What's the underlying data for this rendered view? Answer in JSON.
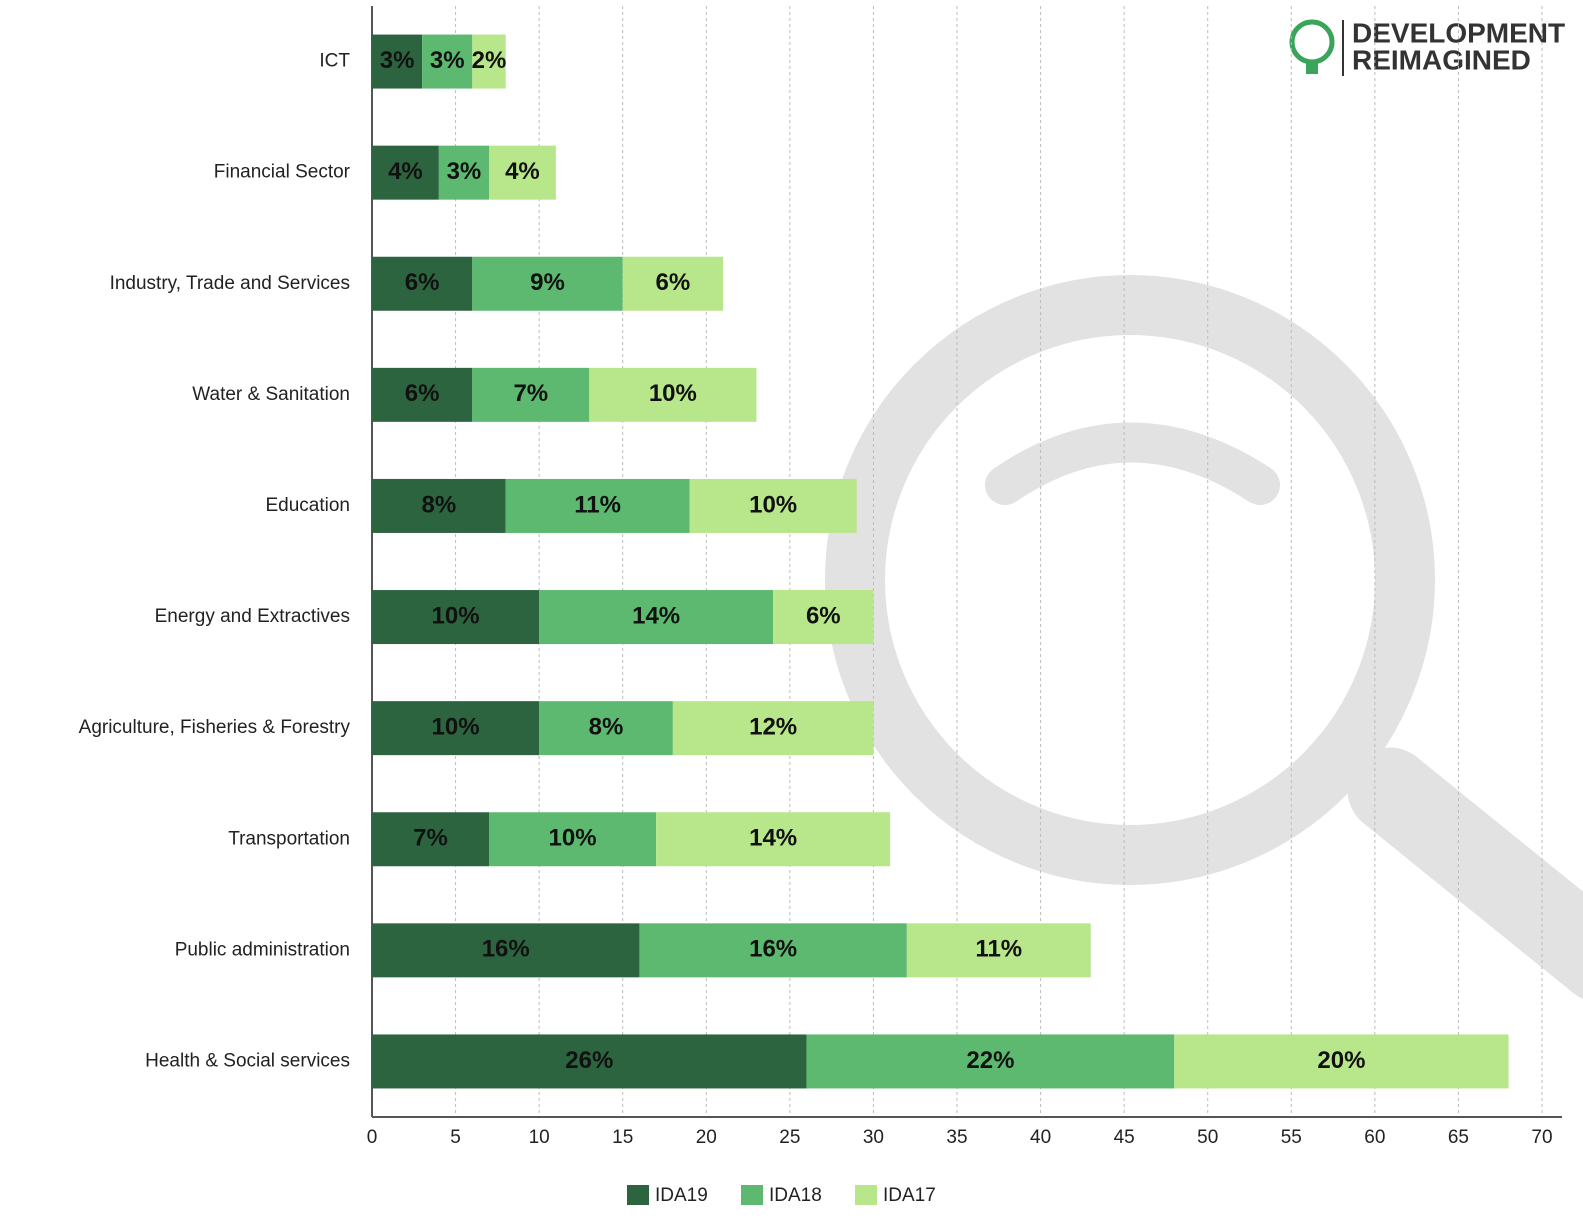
{
  "chart_data": {
    "type": "stacked-barh",
    "logo_text": [
      "DEVELOPMENT",
      "REIMAGINED"
    ],
    "categories": [
      "ICT",
      "Financial Sector",
      "Industry, Trade and Services",
      "Water & Sanitation",
      "Education",
      "Energy and Extractives",
      "Agriculture, Fisheries & Forestry",
      "Transportation",
      "Public administration",
      "Health & Social services"
    ],
    "series": [
      {
        "name": "IDA19",
        "color": "#2d6440",
        "values": [
          3,
          4,
          6,
          6,
          8,
          10,
          10,
          7,
          16,
          26
        ],
        "value_labels": [
          "3%",
          "4%",
          "6%",
          "6%",
          "8%",
          "10%",
          "10%",
          "7%",
          "16%",
          "26%"
        ]
      },
      {
        "name": "IDA18",
        "color": "#5cb96f",
        "values": [
          3,
          3,
          9,
          7,
          11,
          14,
          8,
          10,
          16,
          22
        ],
        "value_labels": [
          "3%",
          "3%",
          "9%",
          "7%",
          "11%",
          "14%",
          "8%",
          "10%",
          "16%",
          "22%"
        ]
      },
      {
        "name": "IDA17",
        "color": "#b8e68a",
        "values": [
          2,
          4,
          6,
          10,
          10,
          6,
          12,
          14,
          11,
          20
        ],
        "value_labels": [
          "2%",
          "4%",
          "6%",
          "10%",
          "10%",
          "6%",
          "12%",
          "14%",
          "11%",
          "20%"
        ]
      }
    ],
    "xlim": [
      0,
      70
    ],
    "xticks": [
      0,
      5,
      10,
      15,
      20,
      25,
      30,
      35,
      40,
      45,
      50,
      55,
      60,
      65,
      70
    ],
    "grid": true,
    "legend": "bottom"
  }
}
